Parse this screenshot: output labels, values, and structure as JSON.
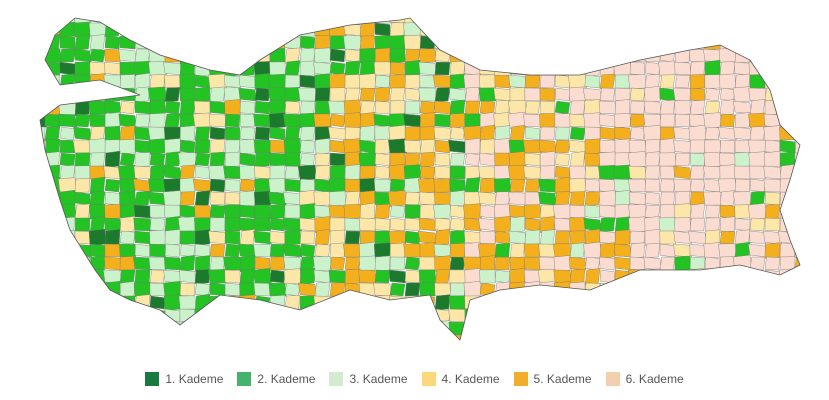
{
  "legend": [
    {
      "label": "1. Kademe",
      "color": "#177a3e"
    },
    {
      "label": "2. Kademe",
      "color": "#45b36b"
    },
    {
      "label": "3. Kademe",
      "color": "#d3ecd0"
    },
    {
      "label": "4. Kademe",
      "color": "#fbd97a"
    },
    {
      "label": "5. Kademe",
      "color": "#efae2c"
    },
    {
      "label": "6. Kademe",
      "color": "#f4cfae"
    }
  ]
}
